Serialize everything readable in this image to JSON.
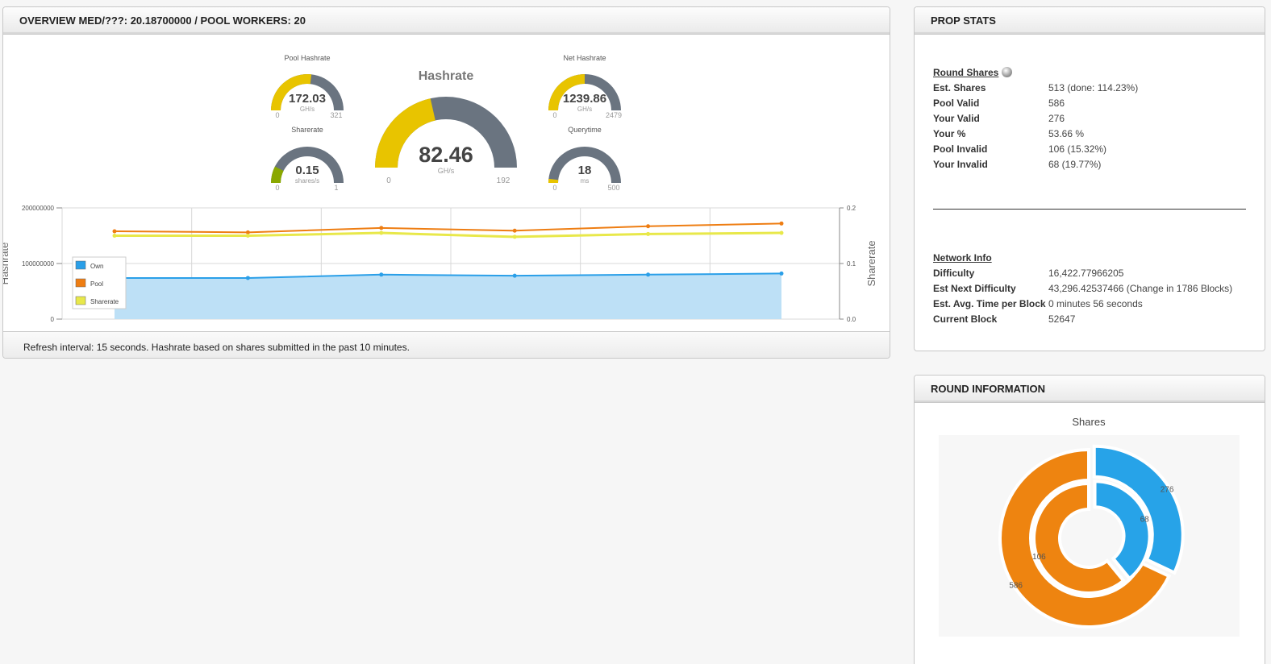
{
  "overview": {
    "title": "OVERVIEW MED/???: 20.18700000 / POOL WORKERS: 20",
    "footer": "Refresh interval: 15 seconds. Hashrate based on shares submitted in the past 10 minutes.",
    "gauges": {
      "pool_hashrate": {
        "title": "Pool Hashrate",
        "value": "172.03",
        "unit": "GH/s",
        "min": "0",
        "max": "321",
        "fraction": 0.536
      },
      "sharerate": {
        "title": "Sharerate",
        "value": "0.15",
        "unit": "shares/s",
        "min": "0",
        "max": "1",
        "fraction": 0.15
      },
      "hashrate": {
        "title": "Hashrate",
        "value": "82.46",
        "unit": "GH/s",
        "min": "0",
        "max": "192",
        "fraction": 0.4295
      },
      "net_hashrate": {
        "title": "Net Hashrate",
        "value": "1239.86",
        "unit": "GH/s",
        "min": "0",
        "max": "2479",
        "fraction": 0.5
      },
      "querytime": {
        "title": "Querytime",
        "value": "18",
        "unit": "ms",
        "min": "0",
        "max": "500",
        "fraction": 0.036
      }
    },
    "colors": {
      "gauge_fill": "#e8c400",
      "gauge_track": "#6a7480",
      "sharerate_fill": "#8aa800"
    }
  },
  "chart_data": {
    "type": "line",
    "x": [
      1,
      2,
      3,
      4,
      5,
      6
    ],
    "ylabel": "Hashrate",
    "y2label": "Sharerate",
    "ylim": [
      0,
      200000000
    ],
    "y2lim": [
      0,
      0.2
    ],
    "yticks": [
      "200000000",
      "100000000",
      "0"
    ],
    "y2ticks": [
      "0.2",
      "0.1",
      "0.0"
    ],
    "legend_position": "left",
    "grid": true,
    "series": [
      {
        "name": "Own",
        "axis": "left",
        "color": "#2a9fe8",
        "fill": "#bde0f6",
        "values": [
          74000000,
          74000000,
          80000000,
          78000000,
          80000000,
          82000000
        ]
      },
      {
        "name": "Pool",
        "axis": "left",
        "color": "#ee7d12",
        "values": [
          158000000,
          156000000,
          164000000,
          159000000,
          167000000,
          172000000
        ]
      },
      {
        "name": "Sharerate",
        "axis": "right",
        "color": "#e8e84a",
        "values": [
          0.15,
          0.15,
          0.155,
          0.148,
          0.153,
          0.155
        ]
      }
    ]
  },
  "prop_stats": {
    "title": "PROP STATS",
    "round_shares_title": "Round Shares",
    "rows": [
      {
        "label": "Est. Shares",
        "value": "513 (done: 114.23%)"
      },
      {
        "label": "Pool Valid",
        "value": "586"
      },
      {
        "label": "Your Valid",
        "value": "276"
      },
      {
        "label": "Your %",
        "value": "53.66 %"
      },
      {
        "label": "Pool Invalid",
        "value": "106 (15.32%)"
      },
      {
        "label": "Your Invalid",
        "value": "68 (19.77%)"
      }
    ],
    "network_title": "Network Info",
    "network_rows": [
      {
        "label": "Difficulty",
        "value": "16,422.77966205"
      },
      {
        "label": "Est Next Difficulty",
        "value": "43,296.42537466 (Change in 1786 Blocks)"
      },
      {
        "label": "Est. Avg. Time per Block",
        "value": "0 minutes 56 seconds"
      },
      {
        "label": "Current Block",
        "value": "52647"
      }
    ]
  },
  "round_info": {
    "title": "ROUND INFORMATION",
    "chart_title": "Shares",
    "outer": [
      {
        "label": "276",
        "value": 276,
        "color": "#27a3e8"
      },
      {
        "label": "586",
        "value": 586,
        "color": "#ee8410"
      }
    ],
    "inner": [
      {
        "label": "68",
        "value": 68,
        "color": "#27a3e8"
      },
      {
        "label": "106",
        "value": 106,
        "color": "#ee8410"
      }
    ]
  }
}
